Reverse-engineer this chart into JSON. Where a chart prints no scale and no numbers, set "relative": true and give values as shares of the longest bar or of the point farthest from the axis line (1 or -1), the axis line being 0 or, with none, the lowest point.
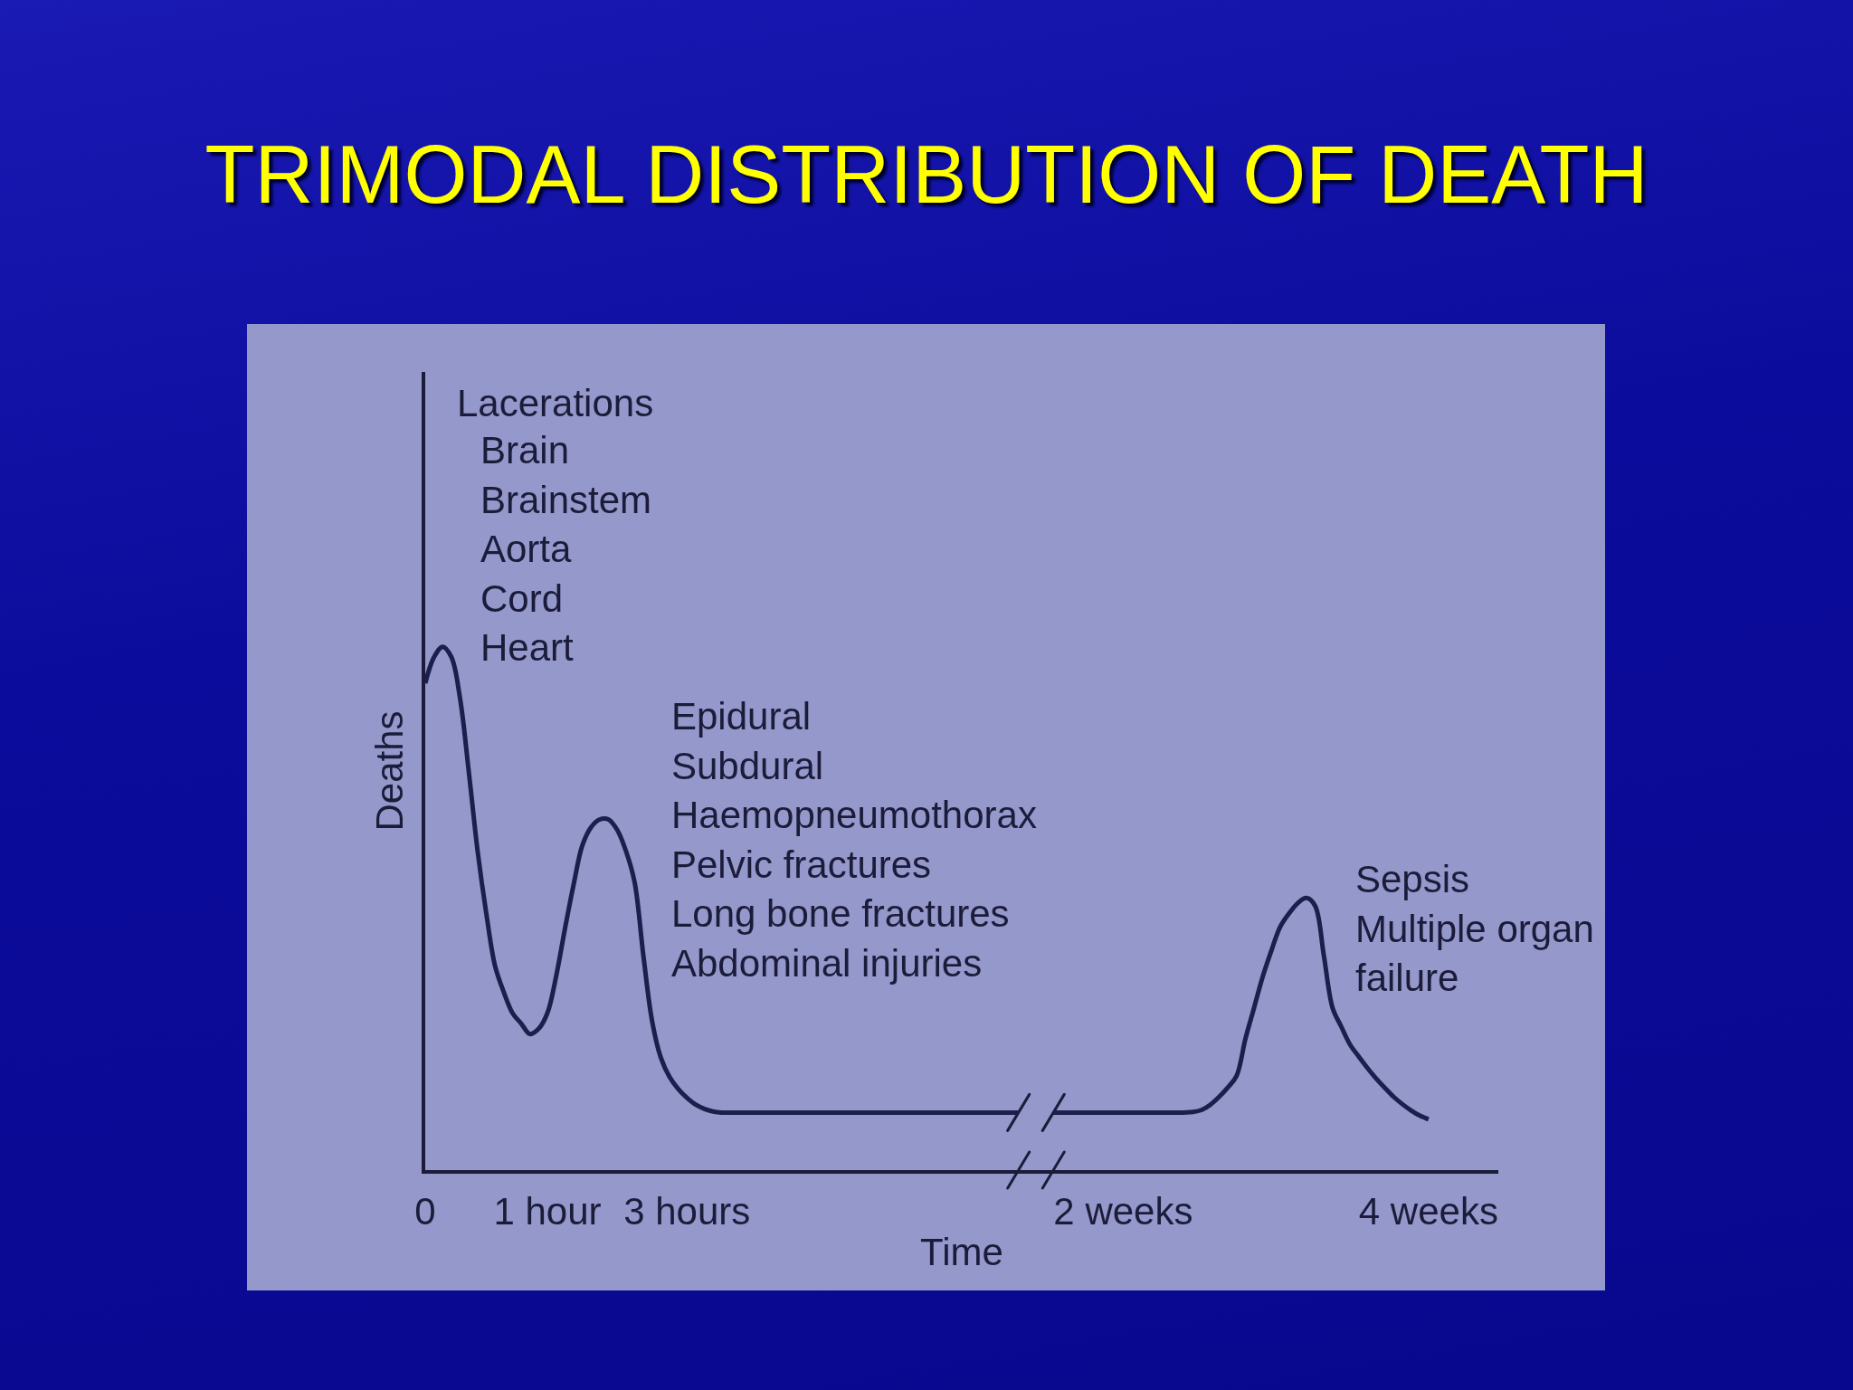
{
  "chart_data": {
    "type": "line",
    "title": "TRIMODAL DISTRIBUTION OF DEATH",
    "xlabel": "Time",
    "ylabel": "Deaths",
    "relative": true,
    "categories": [
      "0",
      null,
      null,
      null,
      null,
      null,
      null,
      null,
      null,
      null,
      null,
      null,
      null,
      null,
      "1 hour",
      null,
      null,
      null,
      null,
      null,
      null,
      null,
      null,
      null,
      null,
      null,
      null,
      null,
      null,
      null,
      "3 hours",
      null,
      null,
      null,
      null,
      null,
      null,
      null,
      null,
      null,
      null,
      null,
      null,
      null,
      null,
      null,
      null,
      null,
      null,
      null,
      null,
      null,
      null,
      null,
      null,
      null,
      null,
      null,
      null,
      null,
      null,
      null,
      null,
      null,
      null,
      null,
      null,
      null,
      null,
      null,
      null,
      null,
      null,
      null,
      null,
      null,
      null,
      null,
      null,
      null,
      "2 weeks",
      null,
      null,
      null,
      null,
      null,
      null,
      null,
      null,
      null,
      null,
      null,
      null,
      null,
      null,
      null,
      null,
      null,
      null,
      null,
      null,
      null,
      null,
      null,
      null,
      null,
      null,
      null,
      null,
      null,
      null,
      null,
      null,
      null,
      null,
      "4 weeks",
      null,
      null,
      null,
      null,
      null,
      null,
      null,
      null
    ],
    "series": [
      {
        "color": "#1c1e4c",
        "values": [
          0.93,
          0.98,
          1,
          0.98,
          0.9,
          0.76,
          0.61,
          0.49,
          0.39,
          0.34,
          0.3,
          0.28,
          0.26,
          0.27,
          0.3,
          0.37,
          0.46,
          0.545,
          0.62,
          0.655,
          0.67,
          0.67,
          0.65,
          0.61,
          0.55,
          0.41,
          0.285,
          0.215,
          0.178,
          0.155,
          0.138,
          0.125,
          0.117,
          0.112,
          0.11,
          0.11,
          0.11,
          0.11,
          0.11,
          0.11,
          0.11,
          0.11,
          0.11,
          0.11,
          0.11,
          0.11,
          0.11,
          0.11,
          0.11,
          0.11,
          0.11,
          0.11,
          0.11,
          0.11,
          0.11,
          0.11,
          0.11,
          0.11,
          0.11,
          0.11,
          0.11,
          0.11,
          0.11,
          0.11,
          0.11,
          0.11,
          0.11,
          0.11,
          0.11,
          null,
          null,
          null,
          0.11,
          0.11,
          0.11,
          0.11,
          0.11,
          0.11,
          0.11,
          0.11,
          0.11,
          0.11,
          0.11,
          0.11,
          0.11,
          0.11,
          0.11,
          0.11,
          0.111,
          0.115,
          0.125,
          0.14,
          0.158,
          0.18,
          0.25,
          0.31,
          0.37,
          0.42,
          0.465,
          0.49,
          0.51,
          0.52,
          0.505,
          0.41,
          0.31,
          0.274,
          0.24,
          0.217,
          0.195,
          0.175,
          0.157,
          0.14,
          0.126,
          0.114,
          0.104,
          0.097,
          null,
          null,
          null,
          null,
          null,
          null,
          null,
          null
        ]
      }
    ],
    "line_style": "solid",
    "annotations": [
      "Lacerations",
      "Brain\nBrainstem\nAorta\nCord\nHeart",
      "Epidural\nSubdural\nHaemopneumothorax\nPelvic fractures\nLong bone fractures\nAbdominal injuries",
      "Sepsis\nMultiple organ\nfailure"
    ]
  }
}
